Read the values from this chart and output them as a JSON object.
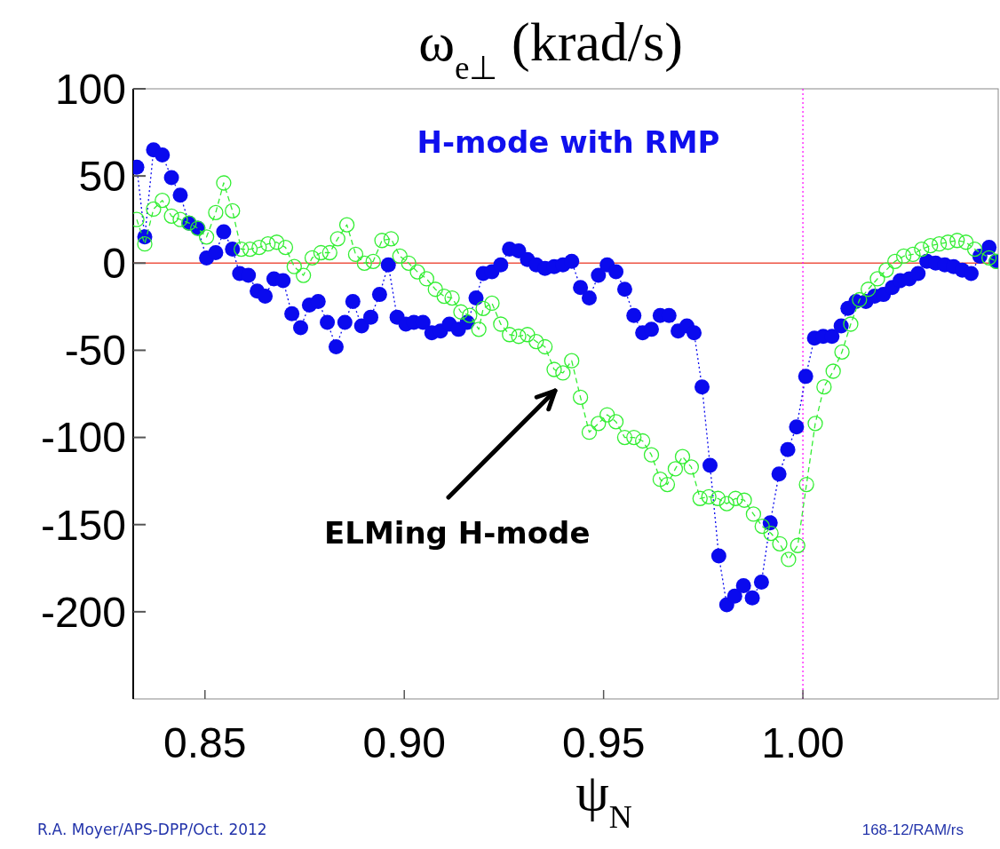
{
  "chart_data": {
    "type": "line",
    "title": "ω$_{e⊥}$ (krad/s)",
    "xlabel": "ψ$_{N}$",
    "xlim": [
      0.832,
      1.049
    ],
    "ylim": [
      -250,
      100
    ],
    "xticks": [
      0.85,
      {
        "value": 0.9,
        "label": "0.90"
      },
      0.95,
      {
        "value": 1.0,
        "label": "1.00"
      }
    ],
    "yticks": [
      100,
      50,
      0,
      -50,
      -100,
      -150,
      -200
    ],
    "grid": false,
    "ref_lines": [
      {
        "axis": "y",
        "value": 0,
        "color": "#ee5544",
        "line_style": "solid"
      },
      {
        "axis": "x",
        "value": 1.0,
        "color": "#ff00ff",
        "line_style": "dotted"
      }
    ],
    "annotations": [
      "H-mode with RMP",
      "ELMing H-mode",
      "R.A. Moyer/APS-DPP/Oct. 2012",
      "168-12/RAM/rs"
    ],
    "series": [
      {
        "color": "#0a0aee",
        "marker": "circle",
        "line_style": "dotted",
        "x": [
          0.8329,
          0.8349,
          0.8371,
          0.8393,
          0.8416,
          0.8438,
          0.846,
          0.8482,
          0.8504,
          0.8527,
          0.8547,
          0.8569,
          0.8587,
          0.8609,
          0.8631,
          0.8651,
          0.8673,
          0.8696,
          0.8718,
          0.874,
          0.8762,
          0.8784,
          0.8807,
          0.8829,
          0.8851,
          0.8871,
          0.8893,
          0.8916,
          0.8938,
          0.896,
          0.8982,
          0.9004,
          0.9024,
          0.9047,
          0.9069,
          0.9091,
          0.9113,
          0.9136,
          0.9158,
          0.918,
          0.9198,
          0.922,
          0.9242,
          0.9264,
          0.9287,
          0.9309,
          0.9331,
          0.9353,
          0.9376,
          0.9398,
          0.942,
          0.9442,
          0.9464,
          0.9487,
          0.9509,
          0.9531,
          0.9553,
          0.9576,
          0.9598,
          0.962,
          0.9642,
          0.9664,
          0.9687,
          0.9709,
          0.9727,
          0.9747,
          0.9767,
          0.9789,
          0.9809,
          0.9829,
          0.9851,
          0.9873,
          0.9896,
          0.9918,
          0.994,
          0.9962,
          0.9984,
          1.0007,
          1.0029,
          1.0051,
          1.0073,
          1.0096,
          1.0113,
          1.0133,
          1.0158,
          1.018,
          1.0202,
          1.0224,
          1.0244,
          1.0267,
          1.0289,
          1.0311,
          1.0333,
          1.0356,
          1.0378,
          1.04,
          1.0422,
          1.0444,
          1.0467,
          1.0485
        ],
        "values": [
          55,
          15,
          65,
          62,
          49,
          39,
          23,
          20,
          3,
          6,
          18,
          8,
          -6,
          -7,
          -16,
          -19,
          -9,
          -10,
          -29,
          -37,
          -24,
          -22,
          -34,
          -48,
          -34,
          -22,
          -36,
          -31,
          -18,
          -1,
          -31,
          -35,
          -34,
          -34,
          -40,
          -39,
          -35,
          -38,
          -34,
          -20,
          -6,
          -5,
          -1,
          8,
          7,
          2,
          -1,
          -3,
          -2,
          -1,
          1,
          -14,
          -20,
          -7,
          -1,
          -5,
          -15,
          -30,
          -40,
          -38,
          -30,
          -30,
          -39,
          -36,
          -40,
          -71,
          -116,
          -168,
          -196,
          -191,
          -185,
          -192,
          -183,
          -149,
          -121,
          -107,
          -94,
          -65,
          -43,
          -42,
          -42,
          -36,
          -26,
          -22,
          -22,
          -19,
          -18,
          -14,
          -10,
          -9,
          -6,
          1,
          0,
          -1,
          -2,
          -4,
          -6,
          4,
          9,
          1
        ]
      },
      {
        "color": "#33ee33",
        "marker": "circle",
        "line_style": "dashed",
        "x": [
          0.8329,
          0.8349,
          0.8371,
          0.8393,
          0.8416,
          0.8438,
          0.846,
          0.8482,
          0.8504,
          0.8527,
          0.8547,
          0.8569,
          0.8591,
          0.8613,
          0.8636,
          0.8658,
          0.868,
          0.8702,
          0.8724,
          0.8747,
          0.8769,
          0.8791,
          0.8813,
          0.8833,
          0.8856,
          0.8878,
          0.89,
          0.8922,
          0.8944,
          0.8967,
          0.8989,
          0.9011,
          0.9033,
          0.9056,
          0.9078,
          0.91,
          0.912,
          0.9142,
          0.9164,
          0.9187,
          0.9198,
          0.922,
          0.9242,
          0.9264,
          0.9287,
          0.9309,
          0.9331,
          0.9353,
          0.9376,
          0.9398,
          0.942,
          0.9442,
          0.9464,
          0.9487,
          0.9509,
          0.9531,
          0.9553,
          0.9576,
          0.9598,
          0.962,
          0.9642,
          0.966,
          0.968,
          0.9698,
          0.972,
          0.9742,
          0.9764,
          0.9787,
          0.9809,
          0.9831,
          0.9853,
          0.9876,
          0.9898,
          0.992,
          0.9942,
          0.9964,
          0.9987,
          1.0009,
          1.0031,
          1.0053,
          1.0076,
          1.0098,
          1.012,
          1.0142,
          1.0164,
          1.0187,
          1.0209,
          1.0231,
          1.0253,
          1.0276,
          1.0298,
          1.032,
          1.0342,
          1.0364,
          1.0387,
          1.0409,
          1.0431,
          1.0467,
          1.0485
        ],
        "values": [
          25,
          11,
          31,
          36,
          27,
          25,
          23,
          20,
          15,
          29,
          46,
          30,
          8,
          8,
          9,
          11,
          12,
          9,
          -2,
          -7,
          3,
          6,
          6,
          14,
          22,
          5,
          0,
          1,
          13,
          14,
          4,
          0,
          -5,
          -9,
          -15,
          -19,
          -20,
          -28,
          -30,
          -38,
          -26,
          -23,
          -35,
          -41,
          -42,
          -41,
          -45,
          -48,
          -61,
          -63,
          -56,
          -77,
          -97,
          -92,
          -87,
          -91,
          -100,
          -100,
          -102,
          -110,
          -124,
          -127,
          -118,
          -111,
          -117,
          -135,
          -134,
          -135,
          -138,
          -135,
          -136,
          -144,
          -151,
          -155,
          -161,
          -170,
          -162,
          -127,
          -92,
          -71,
          -62,
          -51,
          -35,
          -21,
          -15,
          -9,
          -4,
          1,
          4,
          5,
          8,
          10,
          11,
          12,
          13,
          12,
          8,
          3,
          1
        ]
      }
    ]
  }
}
